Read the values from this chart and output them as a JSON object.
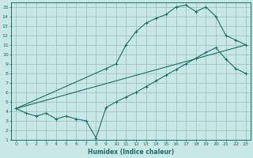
{
  "xlabel": "Humidex (Indice chaleur)",
  "bg_color": "#c8e8e8",
  "grid_color": "#99bbbb",
  "line_color": "#1a6b6b",
  "xlim": [
    -0.5,
    23.5
  ],
  "ylim": [
    1,
    15.5
  ],
  "xticks": [
    0,
    1,
    2,
    3,
    4,
    5,
    6,
    7,
    8,
    9,
    10,
    11,
    12,
    13,
    14,
    15,
    16,
    17,
    18,
    19,
    20,
    21,
    22,
    23
  ],
  "yticks": [
    1,
    2,
    3,
    4,
    5,
    6,
    7,
    8,
    9,
    10,
    11,
    12,
    13,
    14,
    15
  ],
  "line1_x": [
    0,
    1,
    2,
    3,
    4,
    5,
    6,
    7,
    8,
    9,
    10,
    11,
    12,
    13,
    14,
    15,
    16,
    17,
    18,
    19,
    20,
    21,
    22,
    23
  ],
  "line1_y": [
    4.3,
    3.8,
    3.5,
    3.8,
    3.2,
    3.5,
    3.2,
    3.0,
    1.2,
    4.4,
    5.0,
    5.5,
    6.0,
    6.6,
    7.2,
    7.8,
    8.4,
    9.0,
    9.6,
    10.2,
    10.7,
    9.5,
    8.5,
    8.0
  ],
  "line2_x": [
    0,
    9,
    10,
    11,
    12,
    13,
    14,
    15,
    16,
    17,
    18,
    19,
    20,
    21,
    22,
    23
  ],
  "line2_y": [
    4.3,
    8.5,
    9.0,
    11.0,
    12.4,
    13.3,
    13.8,
    14.2,
    15.0,
    15.2,
    14.5,
    15.0,
    14.0,
    12.0,
    11.5,
    11.0
  ],
  "line3_x": [
    0,
    23
  ],
  "line3_y": [
    4.3,
    11.0
  ]
}
